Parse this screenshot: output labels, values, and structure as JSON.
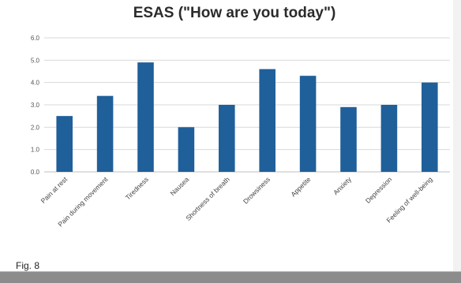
{
  "figure_label": "Fig. 8",
  "colors": {
    "bar": "#1f5f9a",
    "grid": "#d9d9d9",
    "axis": "#bfbfbf"
  },
  "chart_data": {
    "type": "bar",
    "title": "ESAS (\"How are you today\")",
    "xlabel": "",
    "ylabel": "",
    "ylim": [
      0,
      6
    ],
    "grid": true,
    "ytick_labels": [
      "0.0",
      "1.0",
      "2.0",
      "3.0",
      "4.0",
      "5.0",
      "6.0"
    ],
    "categories": [
      "Pain at rest",
      "Pain during movement",
      "Tiredness",
      "Nausea",
      "Shortness of breath",
      "Drowsiness",
      "Appetite",
      "Anxiety",
      "Depression",
      "Feeling of well-being"
    ],
    "values": [
      2.5,
      3.4,
      4.9,
      2.0,
      3.0,
      4.6,
      4.3,
      2.9,
      3.0,
      4.0
    ]
  }
}
